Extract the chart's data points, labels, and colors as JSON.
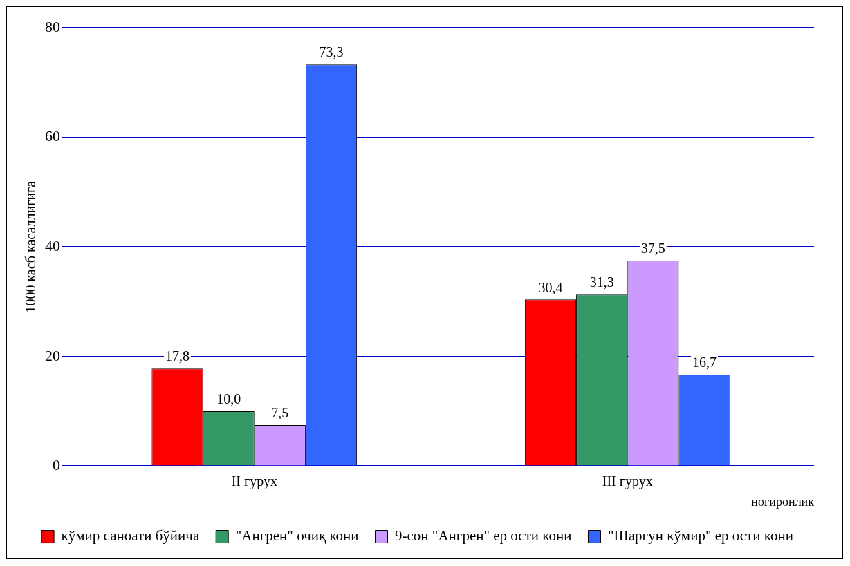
{
  "chart_data": {
    "type": "bar",
    "ylabel": "1000 касб касаллигига",
    "xlabel": "ногиронлик",
    "categories": [
      "II гурух",
      "III гурух"
    ],
    "series": [
      {
        "name": "кўмир саноати бўйича",
        "color": "#ff0000",
        "values": [
          17.8,
          30.4
        ],
        "value_labels": [
          "17,8",
          "30,4"
        ]
      },
      {
        "name": "\"Ангрен\" очиқ кони",
        "color": "#339966",
        "values": [
          10.0,
          31.3
        ],
        "value_labels": [
          "10,0",
          "31,3"
        ]
      },
      {
        "name": "9-сон \"Ангрен\" ер ости кони",
        "color": "#cc99ff",
        "values": [
          7.5,
          37.5
        ],
        "value_labels": [
          "7,5",
          "37,5"
        ]
      },
      {
        "name": "\"Шаргун кўмир\" ер ости кони",
        "color": "#3366ff",
        "values": [
          73.3,
          16.7
        ],
        "value_labels": [
          "73,3",
          "16,7"
        ]
      }
    ],
    "ylim": [
      0,
      80
    ],
    "yticks": [
      0,
      20,
      40,
      60,
      80
    ],
    "grid": "y",
    "legend": "bottom"
  }
}
